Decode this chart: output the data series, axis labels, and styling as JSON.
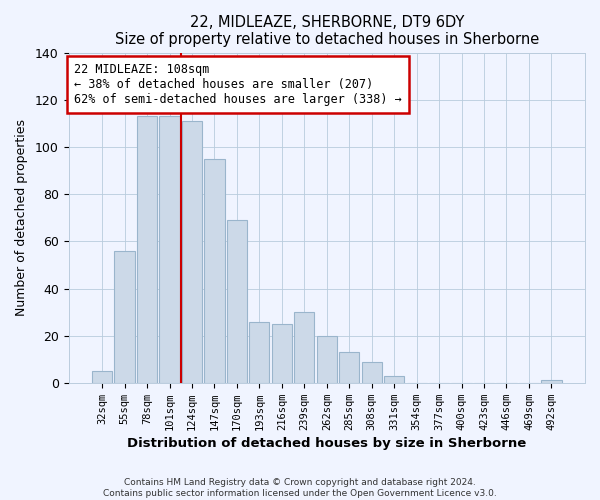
{
  "title": "22, MIDLEAZE, SHERBORNE, DT9 6DY",
  "subtitle": "Size of property relative to detached houses in Sherborne",
  "xlabel": "Distribution of detached houses by size in Sherborne",
  "ylabel": "Number of detached properties",
  "bar_labels": [
    "32sqm",
    "55sqm",
    "78sqm",
    "101sqm",
    "124sqm",
    "147sqm",
    "170sqm",
    "193sqm",
    "216sqm",
    "239sqm",
    "262sqm",
    "285sqm",
    "308sqm",
    "331sqm",
    "354sqm",
    "377sqm",
    "400sqm",
    "423sqm",
    "446sqm",
    "469sqm",
    "492sqm"
  ],
  "bar_values": [
    5,
    56,
    113,
    113,
    111,
    95,
    69,
    26,
    25,
    30,
    20,
    13,
    9,
    3,
    0,
    0,
    0,
    0,
    0,
    0,
    1
  ],
  "bar_color": "#ccd9e8",
  "bar_edge_color": "#9ab5cc",
  "vline_x": 3.5,
  "vline_color": "#cc0000",
  "annotation_title": "22 MIDLEAZE: 108sqm",
  "annotation_line1": "← 38% of detached houses are smaller (207)",
  "annotation_line2": "62% of semi-detached houses are larger (338) →",
  "annotation_box_color": "#ffffff",
  "annotation_box_edge": "#cc0000",
  "ylim": [
    0,
    140
  ],
  "yticks": [
    0,
    20,
    40,
    60,
    80,
    100,
    120,
    140
  ],
  "footer1": "Contains HM Land Registry data © Crown copyright and database right 2024.",
  "footer2": "Contains public sector information licensed under the Open Government Licence v3.0.",
  "bg_color": "#f0f4ff"
}
